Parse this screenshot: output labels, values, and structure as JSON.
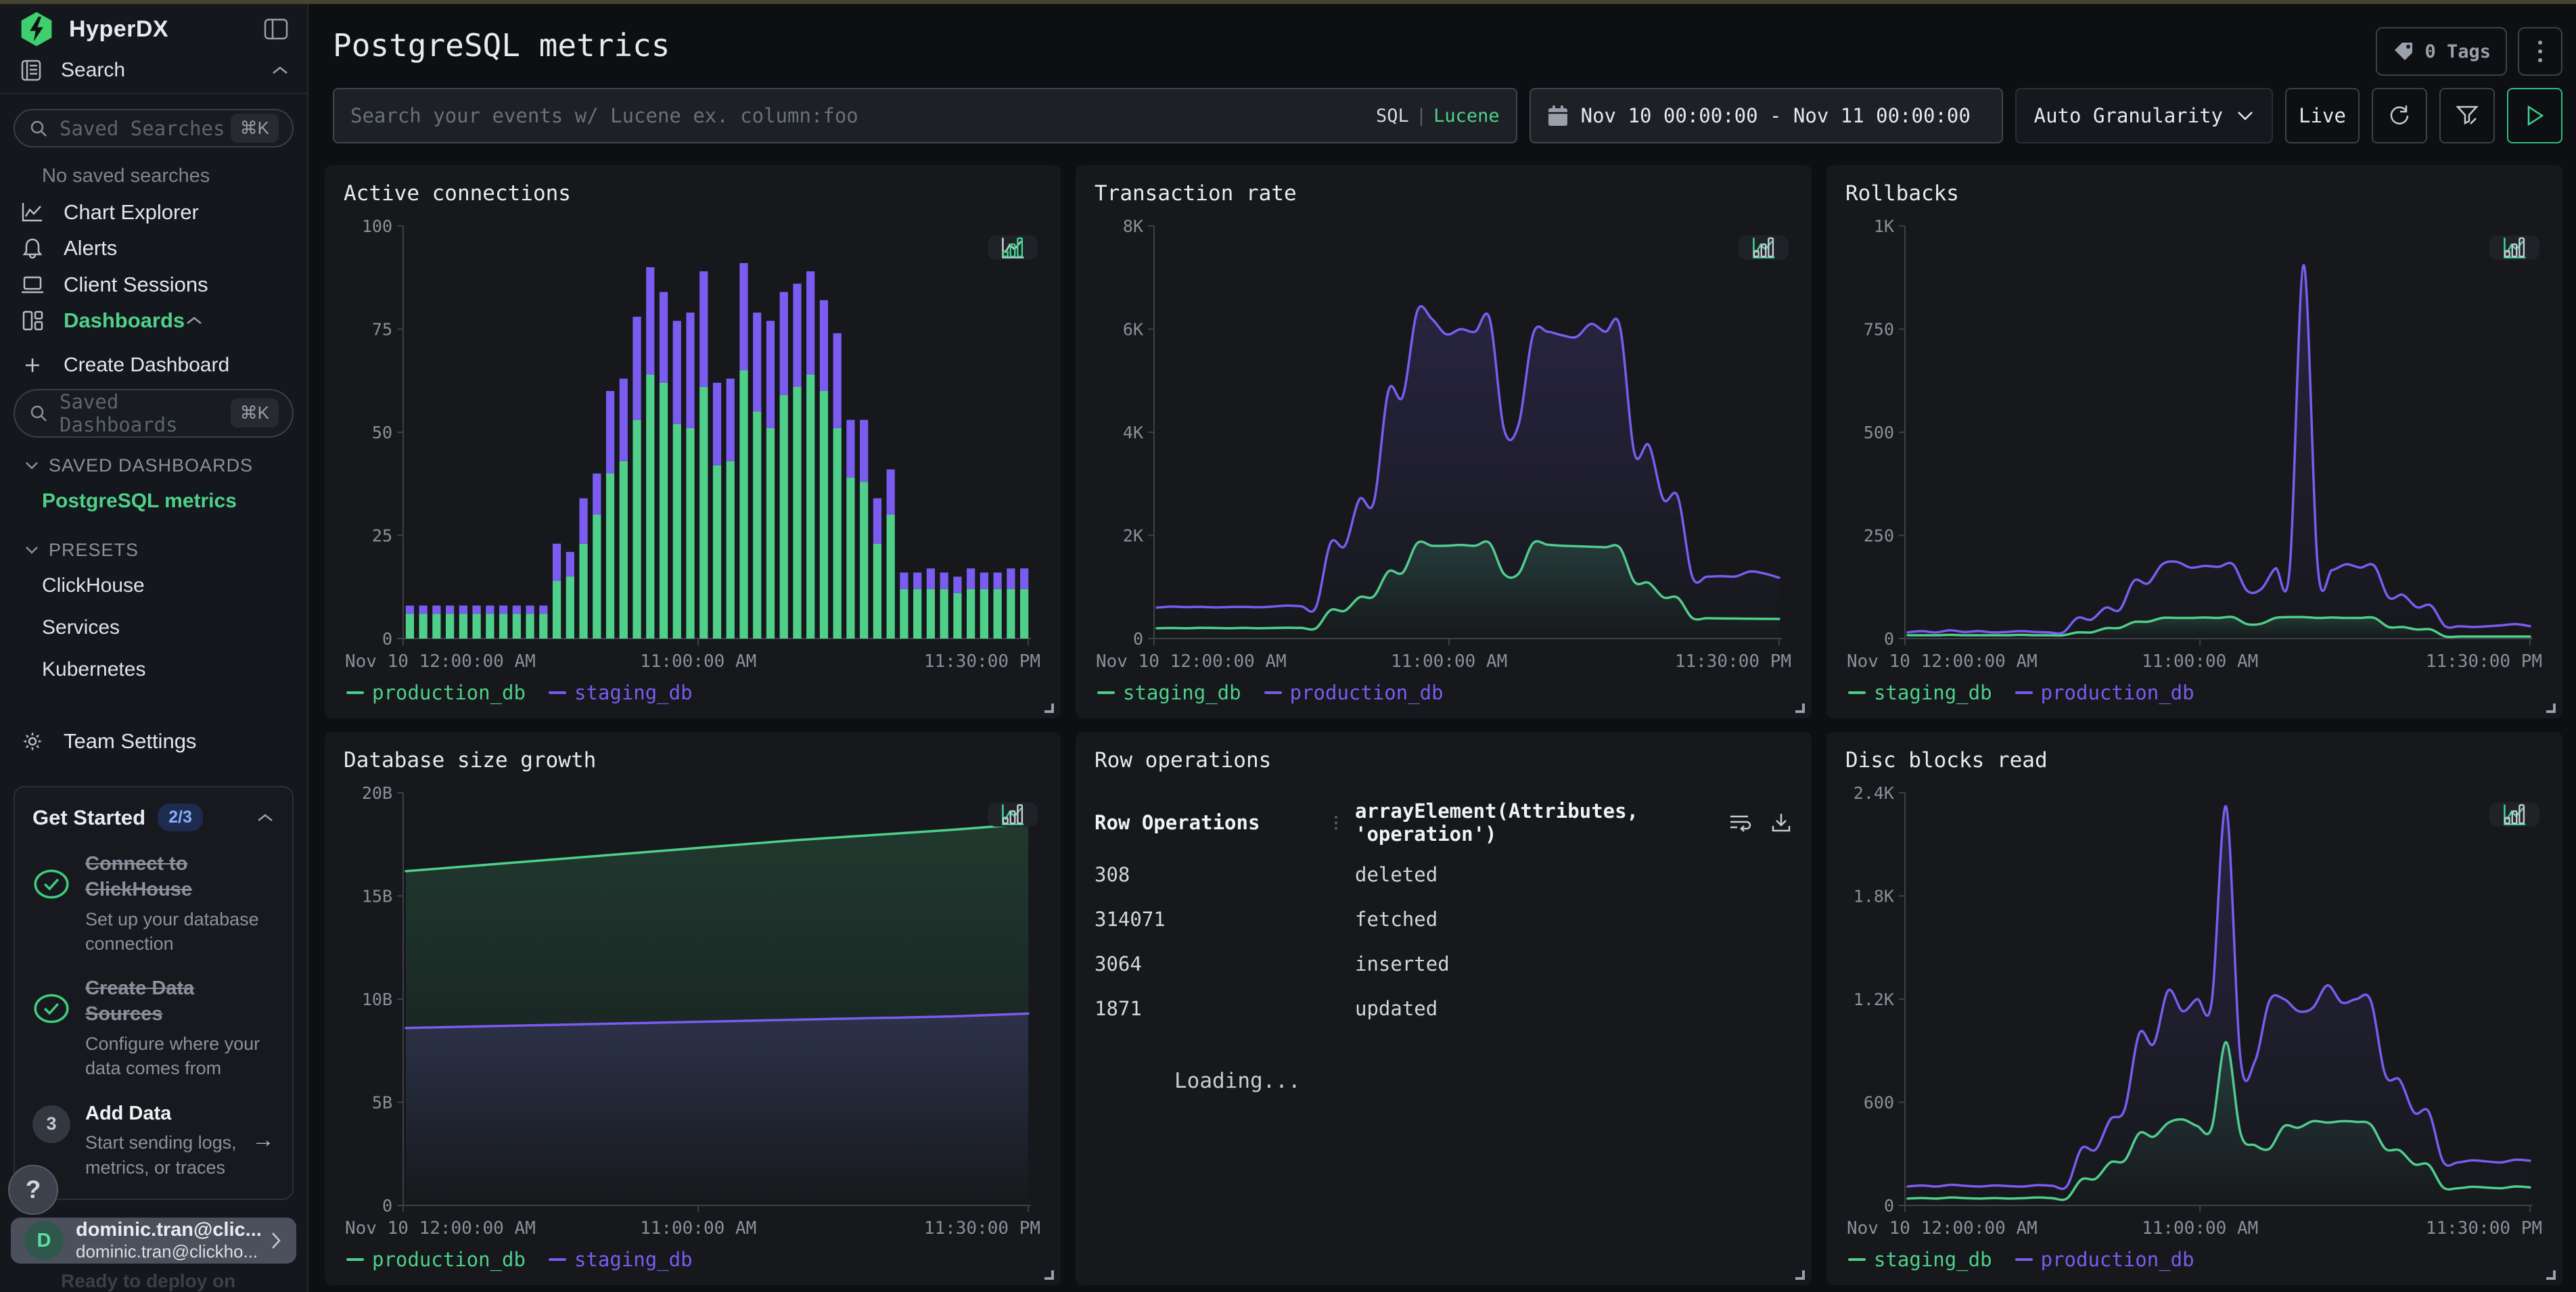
{
  "brand": {
    "name": "HyperDX",
    "accent_green": "#4fd08a",
    "accent_purple": "#7a5cf0"
  },
  "sidebar": {
    "search_group": "Search",
    "saved_searches_placeholder": "Saved Searches",
    "kbd_shortcut": "⌘K",
    "no_saved_searches": "No saved searches",
    "nav": {
      "chart_explorer": "Chart Explorer",
      "alerts": "Alerts",
      "client_sessions": "Client Sessions",
      "dashboards": "Dashboards"
    },
    "create_dashboard": "Create Dashboard",
    "saved_dashboards_placeholder": "Saved Dashboards",
    "saved_dashboards_header": "SAVED DASHBOARDS",
    "active_dashboard": "PostgreSQL metrics",
    "presets_header": "PRESETS",
    "presets": {
      "clickhouse": "ClickHouse",
      "services": "Services",
      "kubernetes": "Kubernetes"
    },
    "team_settings": "Team Settings",
    "get_started": {
      "title": "Get Started",
      "badge": "2/3",
      "items": [
        {
          "title": "Connect to ClickHouse",
          "desc": "Set up your database connection",
          "done": true
        },
        {
          "title": "Create Data Sources",
          "desc": "Configure where your data comes from",
          "done": true
        },
        {
          "title": "Add Data",
          "desc": "Start sending logs, metrics, or traces",
          "done": false,
          "step": "3"
        }
      ]
    },
    "help": "?",
    "user": {
      "initial": "D",
      "name": "dominic.tran@clic...",
      "email": "dominic.tran@clickho..."
    },
    "teaser": "Ready to deploy on"
  },
  "header": {
    "title": "PostgreSQL metrics",
    "tags_label": "0 Tags"
  },
  "filters": {
    "search_placeholder": "Search your events w/ Lucene ex. column:foo",
    "sql": "SQL",
    "lucene": "Lucene",
    "date_range": "Nov 10 00:00:00 - Nov 11 00:00:00",
    "granularity": "Auto Granularity",
    "live": "Live"
  },
  "chart_data": [
    {
      "title": "Active connections",
      "type": "bar",
      "stacked": true,
      "active_view": "bar",
      "ylim": [
        0,
        100
      ],
      "yticks": [
        {
          "v": 0,
          "label": "0"
        },
        {
          "v": 25,
          "label": "25"
        },
        {
          "v": 50,
          "label": "50"
        },
        {
          "v": 75,
          "label": "75"
        },
        {
          "v": 100,
          "label": "100"
        }
      ],
      "xlabels": [
        "Nov 10 12:00:00 AM",
        "11:00:00 AM",
        "11:30:00 PM"
      ],
      "series": [
        {
          "name": "production_db",
          "color": "#4fd08a",
          "values": [
            6,
            6,
            6,
            6,
            6,
            6,
            6,
            6,
            6,
            6,
            6,
            14,
            15,
            23,
            30,
            40,
            43,
            53,
            64,
            62,
            52,
            51,
            61,
            42,
            43,
            65,
            55,
            51,
            59,
            61,
            64,
            60,
            51,
            39,
            38,
            23,
            30,
            12,
            12,
            12,
            12,
            11,
            12,
            12,
            12,
            12,
            12
          ]
        },
        {
          "name": "staging_db",
          "color": "#7a5cf0",
          "values": [
            2,
            2,
            2,
            2,
            2,
            2,
            2,
            2,
            2,
            2,
            2,
            9,
            6,
            11,
            10,
            20,
            20,
            25,
            26,
            22,
            25,
            28,
            28,
            20,
            20,
            26,
            24,
            26,
            25,
            25,
            25,
            22,
            23,
            14,
            15,
            11,
            11,
            4,
            4,
            5,
            4,
            4,
            5,
            4,
            4,
            5,
            5
          ]
        }
      ]
    },
    {
      "title": "Transaction rate",
      "type": "line",
      "active_view": "line",
      "ylim": [
        0,
        8000
      ],
      "yticks": [
        {
          "v": 0,
          "label": "0"
        },
        {
          "v": 2000,
          "label": "2K"
        },
        {
          "v": 4000,
          "label": "4K"
        },
        {
          "v": 6000,
          "label": "6K"
        },
        {
          "v": 8000,
          "label": "8K"
        }
      ],
      "xlabels": [
        "Nov 10 12:00:00 AM",
        "11:00:00 AM",
        "11:30:00 PM"
      ],
      "series": [
        {
          "name": "staging_db",
          "color": "#4fd08a",
          "values": [
            200,
            205,
            200,
            208,
            205,
            200,
            206,
            200,
            205,
            210,
            206,
            200,
            550,
            540,
            800,
            820,
            1300,
            1280,
            1850,
            1800,
            1800,
            1815,
            1800,
            1850,
            1250,
            1260,
            1850,
            1820,
            1800,
            1790,
            1780,
            1770,
            1760,
            1100,
            1080,
            800,
            790,
            400,
            395,
            390,
            388,
            385,
            382,
            380
          ]
        },
        {
          "name": "production_db",
          "color": "#7a5cf0",
          "values": [
            600,
            620,
            610,
            615,
            605,
            612,
            615,
            608,
            620,
            640,
            625,
            610,
            1850,
            1800,
            2700,
            2650,
            4800,
            4700,
            6350,
            6200,
            5900,
            6000,
            5950,
            6200,
            4050,
            4150,
            5900,
            5950,
            5880,
            5850,
            6100,
            5950,
            6050,
            3600,
            3750,
            2700,
            2750,
            1200,
            1200,
            1210,
            1205,
            1300,
            1260,
            1180
          ]
        }
      ]
    },
    {
      "title": "Rollbacks",
      "type": "line",
      "active_view": "line",
      "ylim": [
        0,
        1000
      ],
      "yticks": [
        {
          "v": 0,
          "label": "0"
        },
        {
          "v": 250,
          "label": "250"
        },
        {
          "v": 500,
          "label": "500"
        },
        {
          "v": 750,
          "label": "750"
        },
        {
          "v": 1000,
          "label": "1K"
        }
      ],
      "xlabels": [
        "Nov 10 12:00:00 AM",
        "11:00:00 AM",
        "11:30:00 PM"
      ],
      "series": [
        {
          "name": "staging_db",
          "color": "#4fd08a",
          "values": [
            8,
            8,
            8,
            9,
            8,
            8,
            8,
            8,
            9,
            8,
            8,
            8,
            15,
            15,
            25,
            26,
            40,
            41,
            50,
            50,
            50,
            51,
            50,
            52,
            35,
            36,
            50,
            52,
            52,
            50,
            51,
            50,
            50,
            50,
            28,
            28,
            22,
            22,
            5,
            5,
            5,
            5,
            5,
            5,
            5
          ]
        },
        {
          "name": "production_db",
          "color": "#7a5cf0",
          "values": [
            15,
            18,
            15,
            20,
            16,
            18,
            15,
            16,
            18,
            16,
            15,
            15,
            50,
            46,
            75,
            70,
            140,
            134,
            180,
            186,
            172,
            176,
            174,
            180,
            116,
            120,
            170,
            166,
            905,
            172,
            166,
            180,
            172,
            176,
            100,
            106,
            76,
            80,
            30,
            30,
            28,
            30,
            32,
            35,
            30
          ]
        }
      ]
    },
    {
      "title": "Database size growth",
      "type": "line",
      "active_view": "line",
      "ylim": [
        0,
        20
      ],
      "yticks": [
        {
          "v": 0,
          "label": "0"
        },
        {
          "v": 5,
          "label": "5B"
        },
        {
          "v": 10,
          "label": "10B"
        },
        {
          "v": 15,
          "label": "15B"
        },
        {
          "v": 20,
          "label": "20B"
        }
      ],
      "xlabels": [
        "Nov 10 12:00:00 AM",
        "11:00:00 AM",
        "11:30:00 PM"
      ],
      "series": [
        {
          "name": "production_db",
          "color": "#4fd08a",
          "values": [
            16.2,
            16.5,
            16.8,
            17.1,
            17.4,
            17.7,
            17.95,
            18.2,
            18.5
          ]
        },
        {
          "name": "staging_db",
          "color": "#7a5cf0",
          "values": [
            8.6,
            8.68,
            8.76,
            8.84,
            8.92,
            9.0,
            9.08,
            9.16,
            9.3
          ]
        }
      ]
    },
    {
      "title": "Row operations",
      "type": "table",
      "columns": [
        "Row Operations",
        "arrayElement(Attributes, 'operation')"
      ],
      "rows": [
        [
          "308",
          "deleted"
        ],
        [
          "314071",
          "fetched"
        ],
        [
          "3064",
          "inserted"
        ],
        [
          "1871",
          "updated"
        ]
      ],
      "status": "Loading..."
    },
    {
      "title": "Disc blocks read",
      "type": "line",
      "active_view": "line",
      "ylim": [
        0,
        2400
      ],
      "yticks": [
        {
          "v": 0,
          "label": "0"
        },
        {
          "v": 600,
          "label": "600"
        },
        {
          "v": 1200,
          "label": "1.2K"
        },
        {
          "v": 1800,
          "label": "1.8K"
        },
        {
          "v": 2400,
          "label": "2.4K"
        }
      ],
      "xlabels": [
        "Nov 10 12:00:00 AM",
        "11:00:00 AM",
        "11:30:00 PM"
      ],
      "series": [
        {
          "name": "staging_db",
          "color": "#4fd08a",
          "values": [
            40,
            43,
            40,
            46,
            42,
            40,
            43,
            40,
            42,
            46,
            42,
            40,
            150,
            156,
            250,
            262,
            420,
            400,
            480,
            500,
            462,
            450,
            950,
            420,
            350,
            330,
            460,
            452,
            490,
            482,
            490,
            486,
            470,
            330,
            320,
            240,
            236,
            105,
            100,
            108,
            104,
            100,
            110,
            105
          ]
        },
        {
          "name": "production_db",
          "color": "#7a5cf0",
          "values": [
            110,
            116,
            110,
            120,
            114,
            110,
            116,
            112,
            110,
            118,
            114,
            112,
            330,
            326,
            500,
            560,
            1000,
            940,
            1250,
            1130,
            1200,
            1180,
            2320,
            850,
            840,
            1190,
            1200,
            1130,
            1150,
            1280,
            1180,
            1200,
            1190,
            760,
            730,
            540,
            545,
            255,
            250,
            262,
            256,
            250,
            266,
            260
          ]
        }
      ]
    }
  ]
}
